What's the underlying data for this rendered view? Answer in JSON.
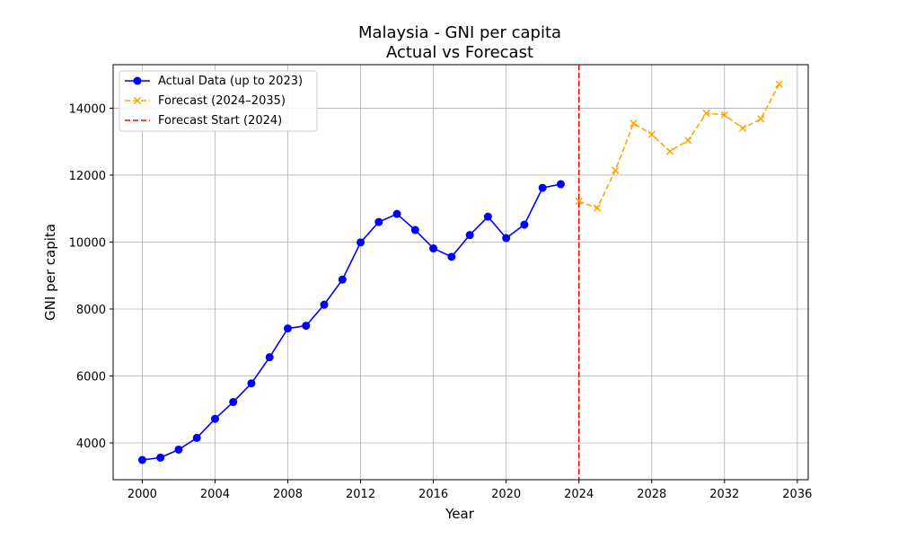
{
  "chart_data": {
    "type": "line",
    "title_line1": "Malaysia - GNI per capita",
    "title_line2": "Actual vs Forecast",
    "xlabel": "Year",
    "ylabel": "GNI per capita",
    "xlim": [
      1998.4,
      2036.6
    ],
    "ylim": [
      2900,
      15300
    ],
    "x_ticks": [
      2000,
      2004,
      2008,
      2012,
      2016,
      2020,
      2024,
      2028,
      2032,
      2036
    ],
    "y_ticks": [
      4000,
      6000,
      8000,
      10000,
      12000,
      14000
    ],
    "grid": true,
    "legend_position": "upper-left",
    "series": [
      {
        "name": "Actual Data (up to 2023)",
        "color": "#0000ff",
        "line_style": "solid",
        "marker": "circle",
        "x": [
          2000,
          2001,
          2002,
          2003,
          2004,
          2005,
          2006,
          2007,
          2008,
          2009,
          2010,
          2011,
          2012,
          2013,
          2014,
          2015,
          2016,
          2017,
          2018,
          2019,
          2020,
          2021,
          2022,
          2023
        ],
        "y": [
          3490,
          3560,
          3800,
          4150,
          4720,
          5220,
          5780,
          6560,
          7420,
          7500,
          8130,
          8880,
          9990,
          10600,
          10840,
          10360,
          9810,
          9560,
          10210,
          10760,
          10120,
          10520,
          11620,
          11730
        ]
      },
      {
        "name": "Forecast (2024–2035)",
        "color": "#ffa500",
        "line_style": "dashed",
        "marker": "x",
        "x": [
          2024,
          2025,
          2026,
          2027,
          2028,
          2029,
          2030,
          2031,
          2032,
          2033,
          2034,
          2035
        ],
        "y": [
          11220,
          11020,
          12140,
          13550,
          13220,
          12710,
          13040,
          13850,
          13800,
          13400,
          13680,
          14720
        ]
      }
    ],
    "vline": {
      "name": "Forecast Start (2024)",
      "x": 2024,
      "color": "#ff0000",
      "line_style": "dashed"
    }
  }
}
